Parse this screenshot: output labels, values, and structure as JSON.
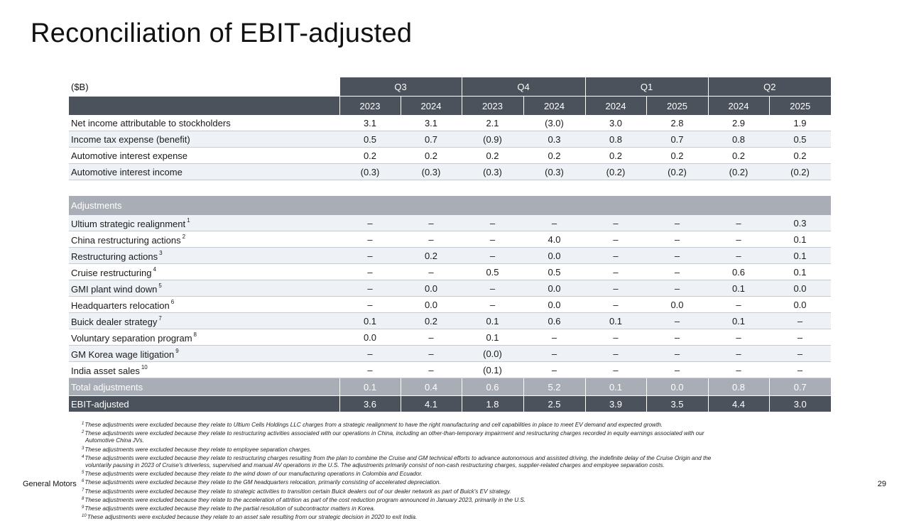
{
  "title": "Reconciliation of EBIT-adjusted",
  "table": {
    "unit_label": "($B)",
    "quarters": [
      "Q3",
      "Q4",
      "Q1",
      "Q2"
    ],
    "years": [
      "2023",
      "2024",
      "2023",
      "2024",
      "2024",
      "2025",
      "2024",
      "2025"
    ],
    "rows": [
      {
        "label": "Net income attributable to stockholders",
        "sup": "",
        "values": [
          "3.1",
          "3.1",
          "2.1",
          "(3.0)",
          "3.0",
          "2.8",
          "2.9",
          "1.9"
        ]
      },
      {
        "label": "Income tax expense (benefit)",
        "sup": "",
        "values": [
          "0.5",
          "0.7",
          "(0.9)",
          "0.3",
          "0.8",
          "0.7",
          "0.8",
          "0.5"
        ]
      },
      {
        "label": "Automotive interest expense",
        "sup": "",
        "values": [
          "0.2",
          "0.2",
          "0.2",
          "0.2",
          "0.2",
          "0.2",
          "0.2",
          "0.2"
        ]
      },
      {
        "label": "Automotive interest income",
        "sup": "",
        "values": [
          "(0.3)",
          "(0.3)",
          "(0.3)",
          "(0.3)",
          "(0.2)",
          "(0.2)",
          "(0.2)",
          "(0.2)"
        ]
      }
    ],
    "adjustments_label": "Adjustments",
    "adjustments": [
      {
        "label": "Ultium strategic realignment",
        "sup": "1",
        "values": [
          "–",
          "–",
          "–",
          "–",
          "–",
          "–",
          "–",
          "0.3"
        ]
      },
      {
        "label": "China restructuring actions",
        "sup": "2",
        "values": [
          "–",
          "–",
          "–",
          "4.0",
          "–",
          "–",
          "–",
          "0.1"
        ]
      },
      {
        "label": "Restructuring actions",
        "sup": "3",
        "values": [
          "–",
          "0.2",
          "–",
          "0.0",
          "–",
          "–",
          "–",
          "0.1"
        ]
      },
      {
        "label": "Cruise restructuring",
        "sup": "4",
        "values": [
          "–",
          "–",
          "0.5",
          "0.5",
          "–",
          "–",
          "0.6",
          "0.1"
        ]
      },
      {
        "label": "GMI plant wind down",
        "sup": "5",
        "values": [
          "–",
          "0.0",
          "–",
          "0.0",
          "–",
          "–",
          "0.1",
          "0.0"
        ]
      },
      {
        "label": "Headquarters relocation",
        "sup": "6",
        "values": [
          "–",
          "0.0",
          "–",
          "0.0",
          "–",
          "0.0",
          "–",
          "0.0"
        ]
      },
      {
        "label": "Buick dealer strategy",
        "sup": "7",
        "values": [
          "0.1",
          "0.2",
          "0.1",
          "0.6",
          "0.1",
          "–",
          "0.1",
          "–"
        ]
      },
      {
        "label": "Voluntary separation program",
        "sup": "8",
        "values": [
          "0.0",
          "–",
          "0.1",
          "–",
          "–",
          "–",
          "–",
          "–"
        ]
      },
      {
        "label": "GM Korea wage litigation",
        "sup": "9",
        "values": [
          "–",
          "–",
          "(0.0)",
          "–",
          "–",
          "–",
          "–",
          "–"
        ]
      },
      {
        "label": "India asset sales",
        "sup": "10",
        "values": [
          "–",
          "–",
          "(0.1)",
          "–",
          "–",
          "–",
          "–",
          "–"
        ]
      }
    ],
    "total": {
      "label": "Total adjustments",
      "values": [
        "0.1",
        "0.4",
        "0.6",
        "5.2",
        "0.1",
        "0.0",
        "0.8",
        "0.7"
      ]
    },
    "ebit": {
      "label": "EBIT-adjusted",
      "values": [
        "3.6",
        "4.1",
        "1.8",
        "2.5",
        "3.9",
        "3.5",
        "4.4",
        "3.0"
      ]
    }
  },
  "footnotes": [
    {
      "n": "1",
      "text": "These adjustments were excluded because they relate to Ultium Cells Holdings LLC charges from a strategic realignment to have the right manufacturing and cell capabilities in place to meet EV demand and expected growth.",
      "cont": ""
    },
    {
      "n": "2",
      "text": "These adjustments were excluded because they relate to restructuring activities associated with our operations in China, including an other-than-temporary impairment and restructuring charges recorded in equity earnings associated with our",
      "cont": "Automotive China JVs."
    },
    {
      "n": "3",
      "text": "These adjustments were excluded because they relate to employee separation charges.",
      "cont": ""
    },
    {
      "n": "4",
      "text": "These adjustments were excluded because they relate to restructuring charges resulting from the plan to combine the Cruise and GM technical efforts to advance autonomous and assisted driving, the indefinite delay of the Cruise Origin and the",
      "cont": "voluntarily pausing in 2023 of Cruise's driverless, supervised and manual AV operations in the U.S. The adjustments primarily consist of non-cash restructuring charges, supplier-related charges and employee separation costs."
    },
    {
      "n": "5",
      "text": "These adjustments were excluded because they relate to the wind down of our manufacturing operations in Colombia and Ecuador.",
      "cont": ""
    },
    {
      "n": "6",
      "text": "These adjustments were excluded because they relate to the GM headquarters relocation, primarily consisting of accelerated depreciation.",
      "cont": ""
    },
    {
      "n": "7",
      "text": "These adjustments were excluded because they relate to strategic activities to transition certain Buick dealers out of our dealer network as part of Buick's EV strategy.",
      "cont": ""
    },
    {
      "n": "8",
      "text": "These adjustments were excluded because they relate to the acceleration of attrition as part of the cost reduction program announced in January 2023, primarily in the U.S.",
      "cont": ""
    },
    {
      "n": "9",
      "text": "These adjustments were excluded because they relate to the partial resolution of subcontractor matters in Korea.",
      "cont": ""
    },
    {
      "n": "10",
      "text": "These adjustments were excluded because they relate to an asset sale resulting from our strategic decision in 2020 to exit India.",
      "cont": ""
    }
  ],
  "footer": {
    "brand": "General Motors",
    "page": "29"
  }
}
